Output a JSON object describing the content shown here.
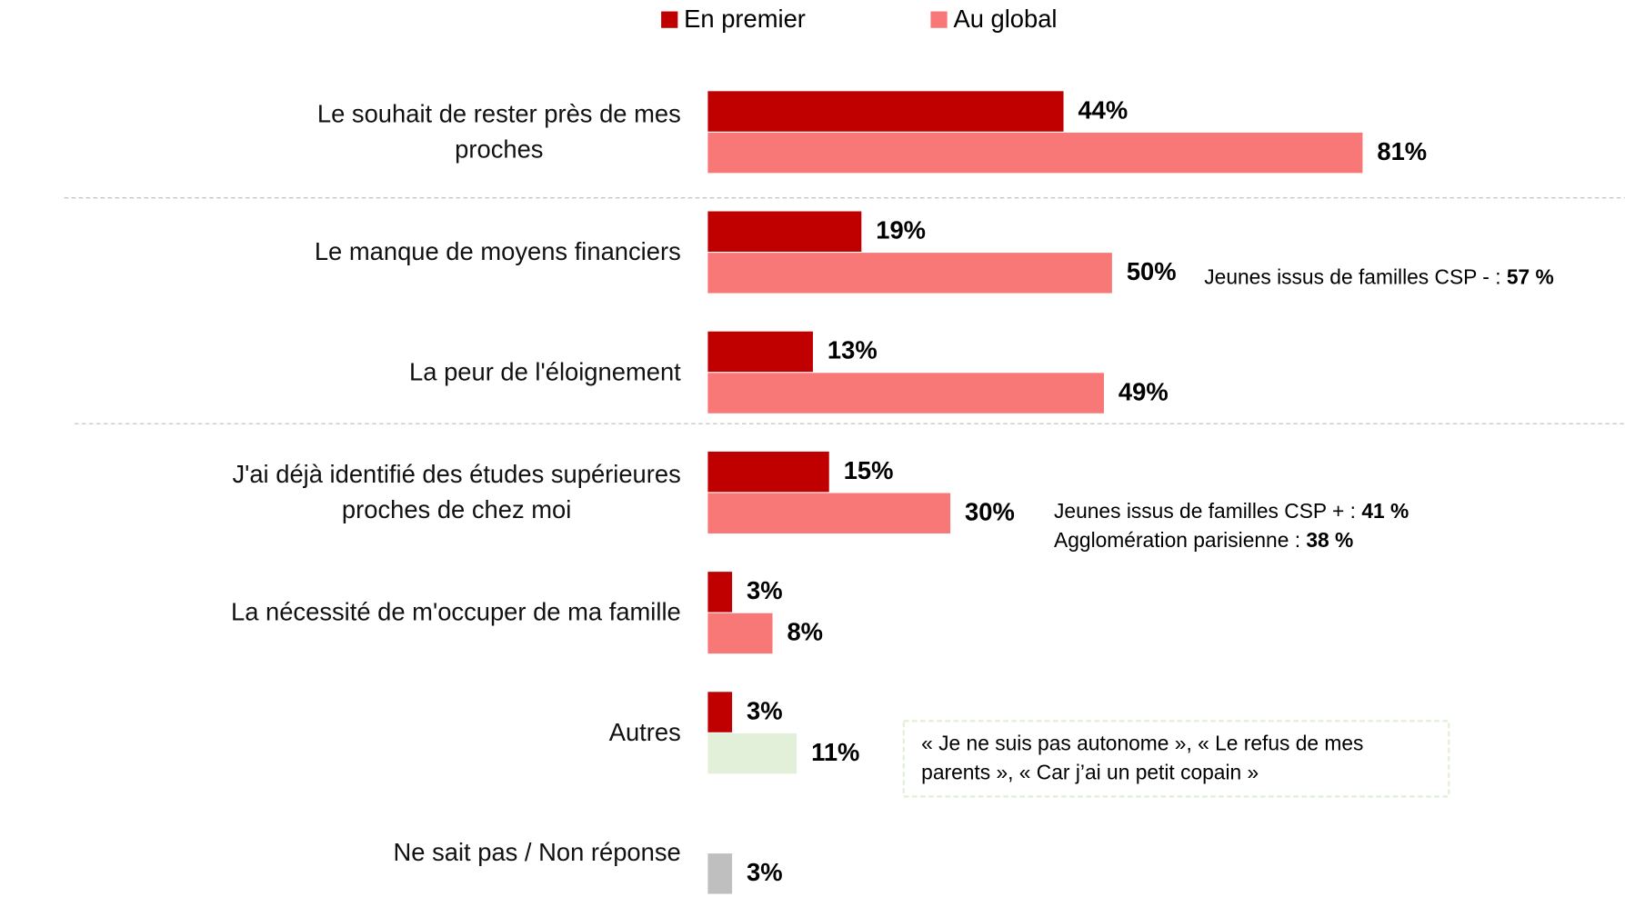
{
  "chart_data": {
    "type": "hbar_grouped",
    "categories": [
      "Le souhait de rester près de mes\nproches",
      "Le manque de moyens financiers",
      "La peur de l'éloignement",
      "J'ai déjà identifié des études supérieures\nproches de chez moi",
      "La nécessité de m'occuper de ma famille",
      "Autres",
      "Ne sait pas / Non réponse"
    ],
    "series": [
      {
        "name": "En premier",
        "color": "#c00000",
        "values": [
          44,
          19,
          13,
          15,
          3,
          3,
          null
        ],
        "value_labels": [
          "44%",
          "19%",
          "13%",
          "15%",
          "3%",
          "3%",
          null
        ]
      },
      {
        "name": "Au global",
        "color": "#f87878",
        "colors": [
          "#f87878",
          "#f87878",
          "#f87878",
          "#f87878",
          "#f87878",
          "#e2efd9",
          "#bfbfbf"
        ],
        "values": [
          81,
          50,
          49,
          30,
          8,
          11,
          3
        ],
        "value_labels": [
          "81%",
          "50%",
          "49%",
          "30%",
          "8%",
          "11%",
          "3%"
        ]
      }
    ],
    "xlim": [
      0,
      100
    ],
    "annotations": [
      {
        "category": 1,
        "lines": [
          [
            {
              "text": "Jeunes issus de familles CSP - : ",
              "bold": false
            },
            {
              "text": "57 %",
              "bold": true
            }
          ]
        ]
      },
      {
        "category": 3,
        "lines": [
          [
            {
              "text": "Jeunes issus de familles CSP + : ",
              "bold": false
            },
            {
              "text": "41 %",
              "bold": true
            }
          ],
          [
            {
              "text": "Agglomération parisienne : ",
              "bold": false
            },
            {
              "text": "38 %",
              "bold": true
            }
          ]
        ]
      },
      {
        "category": 5,
        "boxed": true,
        "lines": [
          [
            {
              "text": "« Je ne suis pas autonome », « Le refus de mes",
              "bold": false
            }
          ],
          [
            {
              "text": "parents », « Car j’ai un petit copain »",
              "bold": false
            }
          ]
        ]
      }
    ]
  }
}
